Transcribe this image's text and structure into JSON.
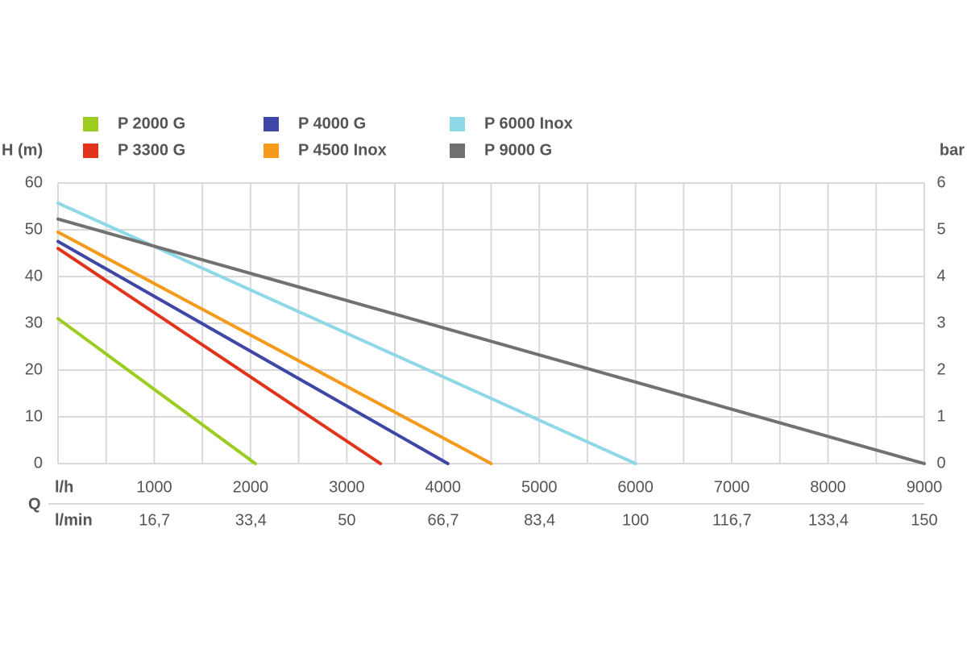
{
  "chart_data": {
    "type": "line",
    "y_label": "H (m)",
    "y2_label": "bar",
    "x_label": "l/h",
    "x_group_label": "Q",
    "x2_label": "l/min",
    "xlim": [
      0,
      9000
    ],
    "xticks": [
      1000,
      2000,
      3000,
      4000,
      5000,
      6000,
      7000,
      8000,
      9000
    ],
    "xminorticks": [
      500,
      1500,
      2500,
      3500,
      4500,
      5500,
      6500,
      7500,
      8500
    ],
    "x2lim": [
      0,
      150
    ],
    "x2ticks": [
      {
        "value": 16.7,
        "label": "16,7"
      },
      {
        "value": 33.4,
        "label": "33,4"
      },
      50,
      {
        "value": 66.7,
        "label": "66,7"
      },
      {
        "value": 83.4,
        "label": "83,4"
      },
      100,
      {
        "value": 116.7,
        "label": "116,7"
      },
      {
        "value": 133.4,
        "label": "133,4"
      },
      150
    ],
    "ylim": [
      0,
      60
    ],
    "yticks": [
      0,
      10,
      20,
      30,
      40,
      50,
      60
    ],
    "y2lim": [
      0,
      6
    ],
    "y2ticks": [
      0,
      1,
      2,
      3,
      4,
      5,
      6
    ],
    "grid": true,
    "legend": "top",
    "series": [
      {
        "name": "P 2000 G",
        "color": "#9ccc1f",
        "x": [
          0,
          2050
        ],
        "values": [
          31,
          0
        ]
      },
      {
        "name": "P 3300 G",
        "color": "#e2341d",
        "x": [
          0,
          3350
        ],
        "values": [
          46,
          0
        ]
      },
      {
        "name": "P 4000 G",
        "color": "#3f47a6",
        "x": [
          0,
          4050
        ],
        "values": [
          47.5,
          0
        ]
      },
      {
        "name": "P 4500 Inox",
        "color": "#f59a1a",
        "x": [
          0,
          4500
        ],
        "values": [
          49.5,
          0
        ]
      },
      {
        "name": "P 6000 Inox",
        "color": "#8fd8e8",
        "x": [
          0,
          6000
        ],
        "values": [
          55.7,
          0
        ]
      },
      {
        "name": "P 9000 G",
        "color": "#717171",
        "x": [
          0,
          9000
        ],
        "values": [
          52.3,
          0
        ]
      }
    ]
  }
}
